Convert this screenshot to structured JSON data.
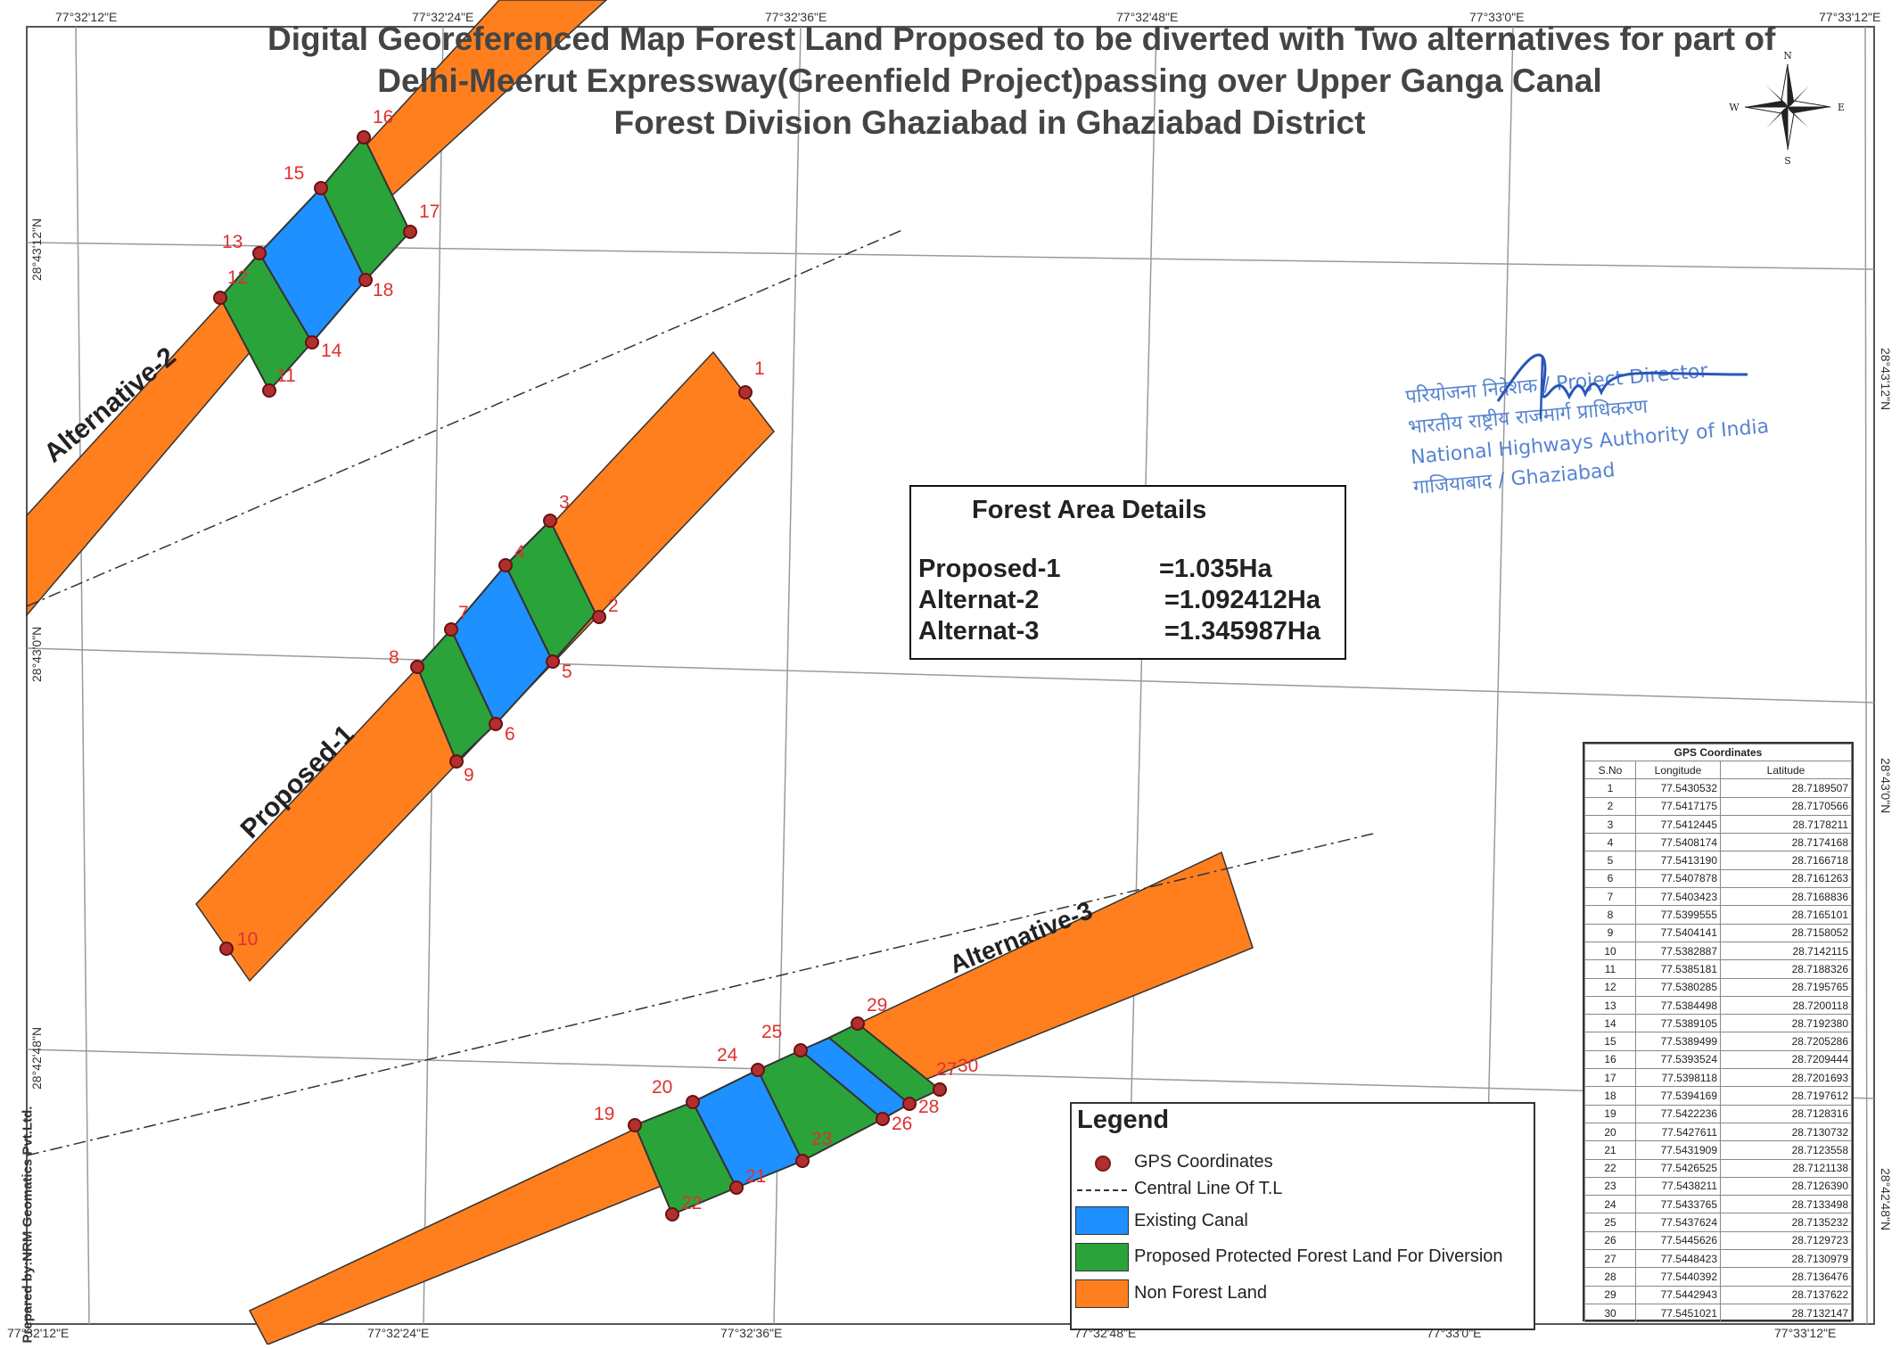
{
  "title": {
    "line1": "Digital Georeferenced Map Forest Land Proposed to be diverted  with Two alternatives for part of",
    "line2": "Delhi-Meerut Expressway(Greenfield Project)passing over Upper Ganga Canal",
    "line3": "Forest Division Ghaziabad  in Ghaziabad District"
  },
  "grid_labels": {
    "top": [
      "77°32'12\"E",
      "77°32'24\"E",
      "77°32'36\"E",
      "77°32'48\"E",
      "77°33'0\"E",
      "77°33'12\"E"
    ],
    "bottom": [
      "77°32'12\"E",
      "77°32'24\"E",
      "77°32'36\"E",
      "77°32'48\"E",
      "77°33'0\"E",
      "77°33'12\"E"
    ],
    "left": [
      "28°43'12\"N",
      "28°43'0\"N",
      "28°42'48\"N"
    ],
    "right": [
      "28°43'12\"N",
      "28°43'0\"N",
      "28°42'48\"N"
    ]
  },
  "compass": {
    "n": "N",
    "s": "S",
    "e": "E",
    "w": "W"
  },
  "corridor_labels": {
    "alt2": "Alternative-2",
    "prop1": "Proposed-1",
    "alt3": "Alternative-3"
  },
  "forest_area": {
    "heading": "Forest Area Details",
    "rows": [
      {
        "name": "Proposed-1",
        "value": "=1.035Ha"
      },
      {
        "name": "Alternat-2",
        "value": "=1.092412Ha"
      },
      {
        "name": "Alternat-3",
        "value": "=1.345987Ha"
      }
    ]
  },
  "gps_table": {
    "caption": "GPS Coordinates",
    "headers": [
      "S.No",
      "Longitude",
      "Latitude"
    ],
    "rows": [
      [
        "1",
        "77.5430532",
        "28.7189507"
      ],
      [
        "2",
        "77.5417175",
        "28.7170566"
      ],
      [
        "3",
        "77.5412445",
        "28.7178211"
      ],
      [
        "4",
        "77.5408174",
        "28.7174168"
      ],
      [
        "5",
        "77.5413190",
        "28.7166718"
      ],
      [
        "6",
        "77.5407878",
        "28.7161263"
      ],
      [
        "7",
        "77.5403423",
        "28.7168836"
      ],
      [
        "8",
        "77.5399555",
        "28.7165101"
      ],
      [
        "9",
        "77.5404141",
        "28.7158052"
      ],
      [
        "10",
        "77.5382887",
        "28.7142115"
      ],
      [
        "11",
        "77.5385181",
        "28.7188326"
      ],
      [
        "12",
        "77.5380285",
        "28.7195765"
      ],
      [
        "13",
        "77.5384498",
        "28.7200118"
      ],
      [
        "14",
        "77.5389105",
        "28.7192380"
      ],
      [
        "15",
        "77.5389499",
        "28.7205286"
      ],
      [
        "16",
        "77.5393524",
        "28.7209444"
      ],
      [
        "17",
        "77.5398118",
        "28.7201693"
      ],
      [
        "18",
        "77.5394169",
        "28.7197612"
      ],
      [
        "19",
        "77.5422236",
        "28.7128316"
      ],
      [
        "20",
        "77.5427611",
        "28.7130732"
      ],
      [
        "21",
        "77.5431909",
        "28.7123558"
      ],
      [
        "22",
        "77.5426525",
        "28.7121138"
      ],
      [
        "23",
        "77.5438211",
        "28.7126390"
      ],
      [
        "24",
        "77.5433765",
        "28.7133498"
      ],
      [
        "25",
        "77.5437624",
        "28.7135232"
      ],
      [
        "26",
        "77.5445626",
        "28.7129723"
      ],
      [
        "27",
        "77.5448423",
        "28.7130979"
      ],
      [
        "28",
        "77.5440392",
        "28.7136476"
      ],
      [
        "29",
        "77.5442943",
        "28.7137622"
      ],
      [
        "30",
        "77.5451021",
        "28.7132147"
      ]
    ]
  },
  "legend": {
    "title": "Legend",
    "items": [
      {
        "label": "GPS Coordinates"
      },
      {
        "label": "Central Line Of T.L"
      },
      {
        "label": "Existing Canal",
        "color": "#1e90ff"
      },
      {
        "label": "Proposed Protected  Forest Land For Diversion",
        "color": "#2aa33a"
      },
      {
        "label": "Non Forest Land",
        "color": "#ff7f1e"
      }
    ]
  },
  "stamp": {
    "line1": "परियोजना निदेशक / Project Director",
    "line2": "भारतीय राष्ट्रीय राजमार्ग प्राधिकरण",
    "line3": "National Highways Authority of India",
    "line4": "गाजियाबाद / Ghaziabad"
  },
  "prepared_by": "Prepared by:NRM Geomatics Pvt.Ltd.",
  "point_numbers": [
    "1",
    "2",
    "3",
    "4",
    "5",
    "6",
    "7",
    "8",
    "9",
    "10",
    "11",
    "12",
    "13",
    "14",
    "15",
    "16",
    "17",
    "18",
    "19",
    "20",
    "21",
    "22",
    "23",
    "24",
    "25",
    "26",
    "27",
    "28",
    "29",
    "30"
  ],
  "colors": {
    "canal": "#1e90ff",
    "forest": "#2aa33a",
    "nonforest": "#ff7f1e",
    "point": "#b03030",
    "label": "#e0302f"
  }
}
